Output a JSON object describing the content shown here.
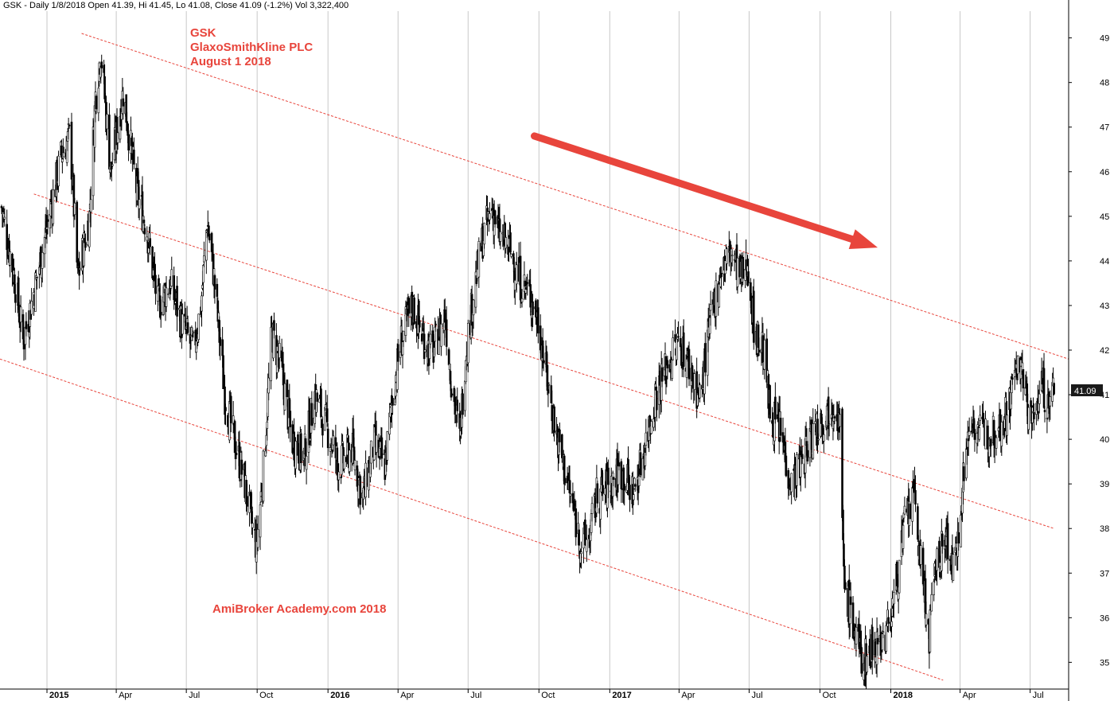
{
  "header": {
    "info": "GSK - Daily 1/8/2018 Open 41.39, Hi 41.45, Lo 41.08, Close 41.09 (-1.2%) Vol 3,322,400"
  },
  "annotations": {
    "title_lines": [
      "GSK",
      "GlaxoSmithKline PLC",
      "August 1 2018"
    ],
    "watermark": "AmiBroker Academy.com  2018"
  },
  "last_price_label": "41.09",
  "colors": {
    "candles": "#000000",
    "channel_lines": "#e8453c",
    "arrow": "#e8453c",
    "annotation_text": "#e8453c",
    "grid": "#c8c8c8",
    "last_price_bg": "#1a1a1a",
    "last_price_text": "#ffffff"
  },
  "chart_data": {
    "type": "candlestick",
    "ticker": "GSK",
    "ylim": [
      34.4,
      49.6
    ],
    "y_ticks": [
      35,
      36,
      37,
      38,
      39,
      40,
      41,
      42,
      43,
      44,
      45,
      46,
      47,
      48,
      49
    ],
    "x_range": [
      "2014-11-01",
      "2018-08-20"
    ],
    "x_ticks": [
      {
        "label": "2015",
        "date": "2015-01-01",
        "year": true
      },
      {
        "label": "Apr",
        "date": "2015-04-01"
      },
      {
        "label": "Jul",
        "date": "2015-07-01"
      },
      {
        "label": "Oct",
        "date": "2015-10-01"
      },
      {
        "label": "2016",
        "date": "2016-01-01",
        "year": true
      },
      {
        "label": "Apr",
        "date": "2016-04-01"
      },
      {
        "label": "Jul",
        "date": "2016-07-01"
      },
      {
        "label": "Oct",
        "date": "2016-10-01"
      },
      {
        "label": "2017",
        "date": "2017-01-01",
        "year": true
      },
      {
        "label": "Apr",
        "date": "2017-04-01"
      },
      {
        "label": "Jul",
        "date": "2017-07-01"
      },
      {
        "label": "Oct",
        "date": "2017-10-01"
      },
      {
        "label": "2018",
        "date": "2018-01-01",
        "year": true
      },
      {
        "label": "Apr",
        "date": "2018-04-01"
      },
      {
        "label": "Jul",
        "date": "2018-07-01"
      }
    ],
    "price_path": [
      [
        "2014-11-03",
        45.2
      ],
      [
        "2014-11-20",
        43.6
      ],
      [
        "2014-12-01",
        42.2
      ],
      [
        "2014-12-15",
        43.3
      ],
      [
        "2015-01-05",
        45.1
      ],
      [
        "2015-01-20",
        46.4
      ],
      [
        "2015-01-31",
        46.8
      ],
      [
        "2015-02-10",
        43.6
      ],
      [
        "2015-02-25",
        45.0
      ],
      [
        "2015-03-05",
        47.7
      ],
      [
        "2015-03-12",
        48.7
      ],
      [
        "2015-03-25",
        46.0
      ],
      [
        "2015-04-10",
        47.8
      ],
      [
        "2015-04-28",
        45.5
      ],
      [
        "2015-05-10",
        44.8
      ],
      [
        "2015-05-25",
        43.0
      ],
      [
        "2015-06-10",
        43.5
      ],
      [
        "2015-06-25",
        42.6
      ],
      [
        "2015-07-10",
        42.0
      ],
      [
        "2015-07-20",
        43.0
      ],
      [
        "2015-07-28",
        44.9
      ],
      [
        "2015-08-05",
        43.8
      ],
      [
        "2015-08-20",
        41.0
      ],
      [
        "2015-09-01",
        40.0
      ],
      [
        "2015-09-15",
        39.0
      ],
      [
        "2015-09-25",
        38.0
      ],
      [
        "2015-09-30",
        37.6
      ],
      [
        "2015-10-10",
        39.5
      ],
      [
        "2015-10-20",
        42.4
      ],
      [
        "2015-11-01",
        41.6
      ],
      [
        "2015-11-15",
        40.0
      ],
      [
        "2015-12-01",
        39.6
      ],
      [
        "2015-12-15",
        41.0
      ],
      [
        "2016-01-01",
        40.2
      ],
      [
        "2016-01-15",
        39.4
      ],
      [
        "2016-02-01",
        39.8
      ],
      [
        "2016-02-15",
        38.7
      ],
      [
        "2016-03-01",
        39.9
      ],
      [
        "2016-03-15",
        39.4
      ],
      [
        "2016-03-25",
        41.0
      ],
      [
        "2016-04-05",
        42.2
      ],
      [
        "2016-04-20",
        43.0
      ],
      [
        "2016-05-01",
        42.4
      ],
      [
        "2016-05-15",
        41.9
      ],
      [
        "2016-06-01",
        42.8
      ],
      [
        "2016-06-10",
        41.2
      ],
      [
        "2016-06-20",
        40.0
      ],
      [
        "2016-06-28",
        42.0
      ],
      [
        "2016-07-10",
        43.5
      ],
      [
        "2016-07-20",
        44.5
      ],
      [
        "2016-08-01",
        45.2
      ],
      [
        "2016-08-10",
        44.6
      ],
      [
        "2016-08-25",
        44.2
      ],
      [
        "2016-09-05",
        43.6
      ],
      [
        "2016-09-20",
        43.2
      ],
      [
        "2016-10-01",
        42.6
      ],
      [
        "2016-10-10",
        41.5
      ],
      [
        "2016-10-25",
        40.0
      ],
      [
        "2016-11-10",
        38.8
      ],
      [
        "2016-11-25",
        37.6
      ],
      [
        "2016-12-05",
        37.8
      ],
      [
        "2016-12-15",
        38.7
      ],
      [
        "2017-01-01",
        39.0
      ],
      [
        "2017-01-15",
        39.3
      ],
      [
        "2017-02-01",
        38.8
      ],
      [
        "2017-02-15",
        39.8
      ],
      [
        "2017-03-01",
        41.0
      ],
      [
        "2017-03-15",
        41.6
      ],
      [
        "2017-04-01",
        42.2
      ],
      [
        "2017-04-15",
        41.6
      ],
      [
        "2017-04-28",
        40.9
      ],
      [
        "2017-05-10",
        42.4
      ],
      [
        "2017-05-25",
        43.8
      ],
      [
        "2017-06-08",
        44.2
      ],
      [
        "2017-06-20",
        43.6
      ],
      [
        "2017-06-30",
        43.9
      ],
      [
        "2017-07-08",
        42.4
      ],
      [
        "2017-07-20",
        42.0
      ],
      [
        "2017-07-28",
        40.6
      ],
      [
        "2017-08-10",
        40.2
      ],
      [
        "2017-08-25",
        39.0
      ],
      [
        "2017-09-10",
        39.6
      ],
      [
        "2017-09-25",
        40.3
      ],
      [
        "2017-10-10",
        40.6
      ],
      [
        "2017-10-20",
        40.9
      ],
      [
        "2017-10-27",
        40.3
      ],
      [
        "2017-11-01",
        36.8
      ],
      [
        "2017-11-10",
        36.1
      ],
      [
        "2017-11-25",
        35.0
      ],
      [
        "2017-12-10",
        35.4
      ],
      [
        "2017-12-25",
        35.6
      ],
      [
        "2018-01-05",
        36.4
      ],
      [
        "2018-01-20",
        38.2
      ],
      [
        "2018-02-01",
        38.7
      ],
      [
        "2018-02-10",
        37.0
      ],
      [
        "2018-02-20",
        35.6
      ],
      [
        "2018-03-01",
        37.2
      ],
      [
        "2018-03-15",
        37.8
      ],
      [
        "2018-03-25",
        36.9
      ],
      [
        "2018-04-01",
        38.6
      ],
      [
        "2018-04-15",
        40.5
      ],
      [
        "2018-05-01",
        40.1
      ],
      [
        "2018-05-20",
        40.3
      ],
      [
        "2018-06-01",
        40.6
      ],
      [
        "2018-06-15",
        41.8
      ],
      [
        "2018-06-25",
        41.0
      ],
      [
        "2018-07-05",
        40.3
      ],
      [
        "2018-07-15",
        41.4
      ],
      [
        "2018-07-25",
        40.6
      ],
      [
        "2018-08-01",
        41.2
      ]
    ],
    "channel_lines": [
      {
        "from": [
          "2015-02-15",
          49.1
        ],
        "to": [
          "2018-08-20",
          41.8
        ]
      },
      {
        "from": [
          "2014-12-15",
          45.5
        ],
        "to": [
          "2018-08-01",
          38.0
        ]
      },
      {
        "from": [
          "2014-11-01",
          41.8
        ],
        "to": [
          "2018-03-10",
          34.6
        ]
      }
    ],
    "trend_arrow": {
      "from": [
        "2016-09-25",
        46.8
      ],
      "to": [
        "2017-12-15",
        44.3
      ]
    },
    "last_price": 41.09,
    "grid": "vertical"
  }
}
